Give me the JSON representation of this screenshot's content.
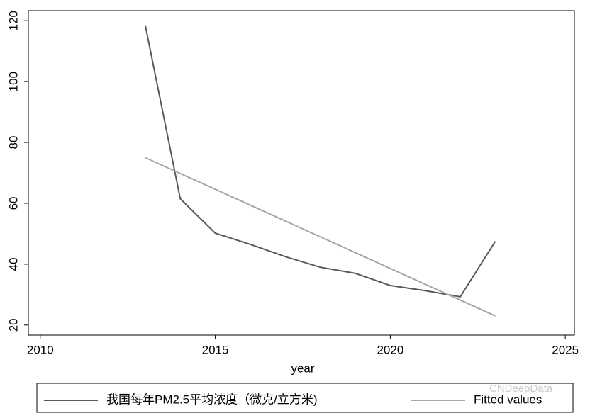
{
  "chart_data": {
    "type": "line",
    "x": [
      2013,
      2014,
      2015,
      2016,
      2017,
      2018,
      2019,
      2020,
      2021,
      2022,
      2023
    ],
    "series": [
      {
        "name": "我国每年PM2.5平均浓度（微克/立方米)",
        "color": "#5a5a5a",
        "values": [
          118.5,
          61.5,
          50.2,
          46.5,
          42.5,
          39.0,
          37.0,
          33.0,
          31.3,
          29.3,
          47.5
        ]
      },
      {
        "name": "Fitted values",
        "color": "#a6a6a6",
        "values": [
          75,
          69.8,
          64.6,
          59.4,
          54.2,
          49,
          43.8,
          38.6,
          33.4,
          28.2,
          23
        ]
      }
    ],
    "xlabel": "year",
    "xlim": [
      2009.66,
      2025.26
    ],
    "xticks": [
      2010,
      2015,
      2020,
      2025
    ],
    "ylim": [
      16.7,
      123.3
    ],
    "yticks": [
      20,
      40,
      60,
      80,
      100,
      120
    ],
    "watermark": "CNDeepData"
  }
}
